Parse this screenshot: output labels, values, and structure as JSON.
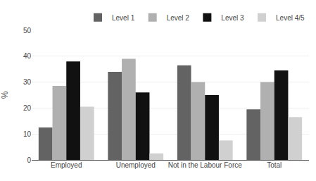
{
  "chart_data": {
    "type": "bar",
    "categories": [
      "Employed",
      "Unemployed",
      "Not in the Labour Force",
      "Total"
    ],
    "series": [
      {
        "name": "Level 1",
        "color": "#636363",
        "values": [
          12.5,
          34.0,
          36.5,
          19.5
        ]
      },
      {
        "name": "Level 2",
        "color": "#b0b0b0",
        "values": [
          28.5,
          39.0,
          30.0,
          30.0
        ]
      },
      {
        "name": "Level 3",
        "color": "#111111",
        "values": [
          38.0,
          26.0,
          25.0,
          34.5
        ]
      },
      {
        "name": "Level 4/5",
        "color": "#d0d0d0",
        "values": [
          20.5,
          2.5,
          7.5,
          16.5
        ]
      }
    ],
    "ylabel": "%",
    "ylim": [
      0,
      50
    ],
    "yticks": [
      0,
      10,
      20,
      30,
      40,
      50
    ],
    "grid": true,
    "legend": "upper right"
  }
}
